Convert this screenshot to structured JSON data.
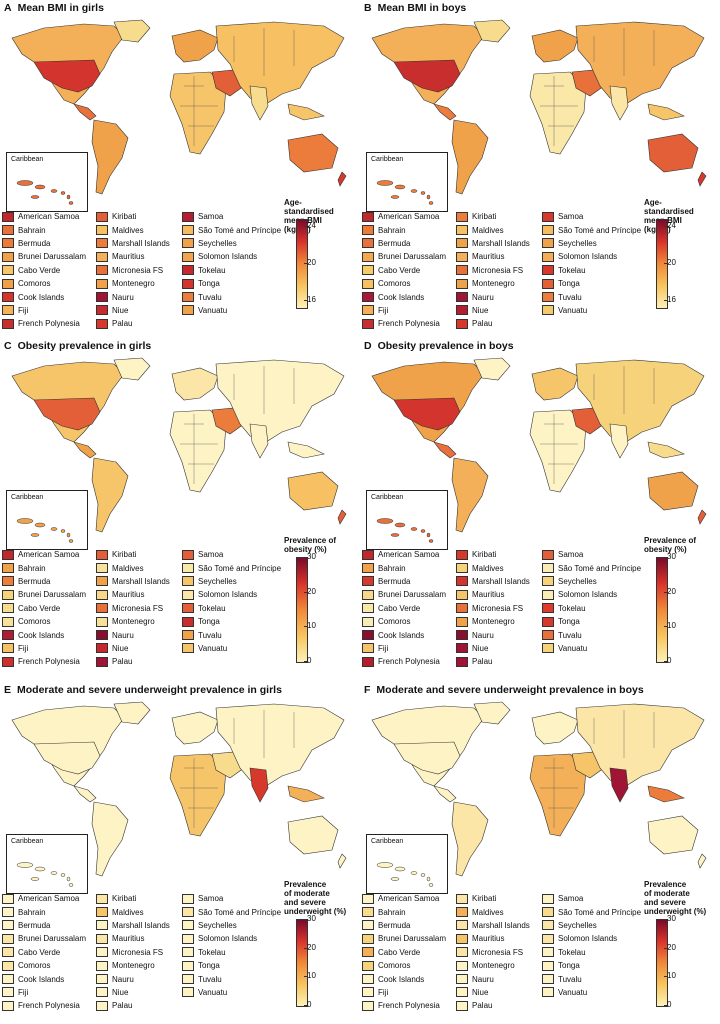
{
  "territories": [
    "American Samoa",
    "Bahrain",
    "Bermuda",
    "Brunei Darussalam",
    "Cabo Verde",
    "Comoros",
    "Cook Islands",
    "Fiji",
    "French Polynesia",
    "Kiribati",
    "Maldives",
    "Marshall Islands",
    "Mauritius",
    "Micronesia FS",
    "Montenegro",
    "Nauru",
    "Niue",
    "Palau",
    "Samoa",
    "São Tomé and Príncipe",
    "Seychelles",
    "Solomon Islands",
    "Tokelau",
    "Tonga",
    "Tuvalu",
    "Vanuatu"
  ],
  "inset_label": "Caribbean",
  "panels": [
    {
      "letter": "A",
      "title": "Mean BMI in girls",
      "scale_title": [
        "Age-standardised",
        "mean BMI (kg/m²)"
      ],
      "ticks": [
        "24",
        "20",
        "16"
      ],
      "gradient": [
        "#7a0a2a",
        "#d9342b",
        "#f08a3a",
        "#f7c55e",
        "#fdf1b8"
      ],
      "colors": [
        "#c0282e",
        "#e8703a",
        "#ec7a3a",
        "#f0a24a",
        "#f6c569",
        "#f1a048",
        "#d7352c",
        "#f5b25a",
        "#c92e2e",
        "#e35f37",
        "#f6c063",
        "#ec7c3c",
        "#f4b058",
        "#e8703a",
        "#f0a24a",
        "#a01536",
        "#c72c2f",
        "#d6392c",
        "#b51e2f",
        "#f5bb60",
        "#f0a24a",
        "#f2a54d",
        "#c5292f",
        "#d3342d",
        "#ec7c3c",
        "#f0a24a"
      ]
    },
    {
      "letter": "B",
      "title": "Mean BMI in boys",
      "scale_title": [
        "Age-standardised",
        "mean BMI (kg/m²)"
      ],
      "ticks": [
        "24",
        "20",
        "16"
      ],
      "gradient": [
        "#7a0a2a",
        "#d9342b",
        "#f08a3a",
        "#f7c55e",
        "#fdf1b8"
      ],
      "colors": [
        "#c0282e",
        "#ec7a3a",
        "#e8703a",
        "#f3a84f",
        "#f7ca6a",
        "#f6c063",
        "#a81a35",
        "#f4b058",
        "#c92e2e",
        "#ec7c3c",
        "#f6c063",
        "#f0a24a",
        "#f4b058",
        "#e8703a",
        "#f0a24a",
        "#a01536",
        "#b51e2f",
        "#d6392c",
        "#d6392c",
        "#f5bb60",
        "#f0a24a",
        "#f4ad55",
        "#d6392c",
        "#e35f37",
        "#ec7c3c",
        "#f3cb6c"
      ]
    },
    {
      "letter": "C",
      "title": "Obesity prevalence in girls",
      "scale_title": [
        "Prevalence of",
        "obesity (%)"
      ],
      "ticks": [
        "30",
        "20",
        "10",
        "0"
      ],
      "gradient": [
        "#7a0a2a",
        "#d9342b",
        "#f08a3a",
        "#f7c55e",
        "#fdf1b8"
      ],
      "colors": [
        "#c0282e",
        "#f0a24a",
        "#ec7c3c",
        "#f6d27a",
        "#f8dc8d",
        "#f8e29b",
        "#b01d33",
        "#f6c063",
        "#cc2f2f",
        "#e35f37",
        "#f8e29b",
        "#f0a24a",
        "#f8d98a",
        "#e8703a",
        "#f8e29b",
        "#8a0e30",
        "#c5292f",
        "#a01536",
        "#e35f37",
        "#f9e8a8",
        "#f6c569",
        "#f9e8a8",
        "#e35f37",
        "#c92e2e",
        "#f0a24a",
        "#f6c569"
      ]
    },
    {
      "letter": "D",
      "title": "Obesity prevalence in boys",
      "scale_title": [
        "Prevalence of",
        "obesity (%)"
      ],
      "ticks": [
        "30",
        "20",
        "10",
        "0"
      ],
      "gradient": [
        "#7a0a2a",
        "#d9342b",
        "#f08a3a",
        "#f7c55e",
        "#fdf1b8"
      ],
      "colors": [
        "#c0282e",
        "#f0a24a",
        "#d6392c",
        "#f8d98a",
        "#f9e8a8",
        "#f9ecb4",
        "#8a0e30",
        "#f6c569",
        "#b51e2f",
        "#d6392c",
        "#f6d27a",
        "#d3342d",
        "#f6c569",
        "#e8703a",
        "#f0a24a",
        "#8a0e30",
        "#a01536",
        "#a01536",
        "#e35f37",
        "#f9ecb4",
        "#f6d27a",
        "#f9ecb4",
        "#e03a2c",
        "#d6392c",
        "#e8703a",
        "#f6d27a"
      ]
    },
    {
      "letter": "E",
      "title": "Moderate and severe underweight prevalence in girls",
      "scale_title": [
        "Prevalence",
        "of moderate",
        "and severe",
        "underweight (%)"
      ],
      "ticks": [
        "30",
        "20",
        "10",
        "0"
      ],
      "gradient": [
        "#7a0a2a",
        "#d9342b",
        "#f08a3a",
        "#f7c55e",
        "#fdf1b8"
      ],
      "colors": [
        "#fdf3c4",
        "#fdf3c4",
        "#fdf3c4",
        "#fbe6a8",
        "#fbe6a8",
        "#fbe6a8",
        "#fdf3c4",
        "#fdf3c4",
        "#fdf3c4",
        "#fbe6a8",
        "#f6c569",
        "#fdf3c4",
        "#fbe6a8",
        "#fdf3c4",
        "#fdf3c4",
        "#fdf3c4",
        "#fdf3c4",
        "#fdf3c4",
        "#fdf3c4",
        "#fbe6a8",
        "#fdf3c4",
        "#fdf3c4",
        "#fdf3c4",
        "#fdf3c4",
        "#fdf3c4",
        "#fdf3c4"
      ]
    },
    {
      "letter": "F",
      "title": "Moderate and severe underweight prevalence in boys",
      "scale_title": [
        "Prevalence",
        "of moderate",
        "and severe",
        "underweight (%)"
      ],
      "ticks": [
        "30",
        "20",
        "10",
        "0"
      ],
      "gradient": [
        "#7a0a2a",
        "#d9342b",
        "#f08a3a",
        "#f7c55e",
        "#fdf1b8"
      ],
      "colors": [
        "#fdf3c4",
        "#f8dc8d",
        "#fdf3c4",
        "#f6d27a",
        "#f4b058",
        "#f6d27a",
        "#fdf3c4",
        "#fdf3c4",
        "#fdf3c4",
        "#fbe6a8",
        "#f4b058",
        "#fbe6a8",
        "#f6c569",
        "#fbe6a8",
        "#fdf3c4",
        "#fdf3c4",
        "#fdf3c4",
        "#fdf3c4",
        "#fdf3c4",
        "#f8dc8d",
        "#fbe6a8",
        "#fbe6a8",
        "#fdf3c4",
        "#fdf3c4",
        "#fdf3c4",
        "#fdf3c4"
      ]
    }
  ]
}
